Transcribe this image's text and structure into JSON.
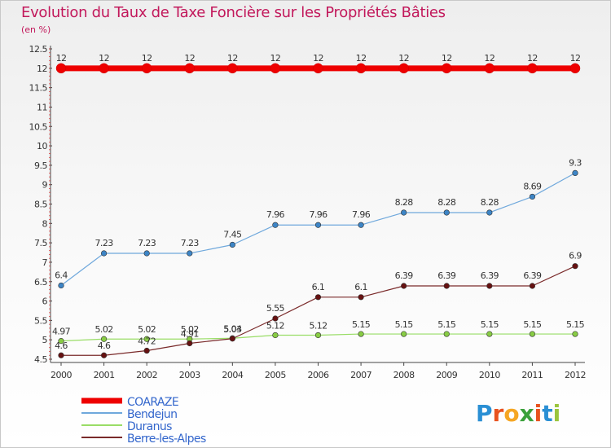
{
  "title": "Evolution du Taux de Taxe Foncière sur les Propriétés Bâties",
  "unit_label": "(en %)",
  "logo": {
    "letters": [
      "P",
      "r",
      "o",
      "x",
      "i",
      "t",
      "i"
    ],
    "colors": [
      "#2a8fd4",
      "#e8521f",
      "#f5a623",
      "#3aa03a",
      "#e8521f",
      "#2a8fd4",
      "#9bc53d"
    ]
  },
  "chart_data": {
    "type": "line",
    "title": "Evolution du Taux de Taxe Foncière sur les Propriétés Bâties",
    "ylabel": "(en %)",
    "xlabel": "",
    "x": [
      "2000",
      "2001",
      "2002",
      "2003",
      "2004",
      "2005",
      "2006",
      "2007",
      "2008",
      "2009",
      "2010",
      "2011",
      "2012"
    ],
    "ylim": [
      4.5,
      12.5
    ],
    "yticks": [
      "4.5",
      "5",
      "5.5",
      "6",
      "6.5",
      "7",
      "7.5",
      "8",
      "8.5",
      "9",
      "9.5",
      "10",
      "10.5",
      "11",
      "11.5",
      "12",
      "12.5"
    ],
    "grid": false,
    "legend_position": "bottom-left",
    "series": [
      {
        "name": "COARAZE",
        "color": "#ee0000",
        "marker": "#ee0000",
        "width": 7,
        "values": [
          12,
          12,
          12,
          12,
          12,
          12,
          12,
          12,
          12,
          12,
          12,
          12,
          12
        ],
        "labels": [
          "12",
          "12",
          "12",
          "12",
          "12",
          "12",
          "12",
          "12",
          "12",
          "12",
          "12",
          "12",
          "12"
        ]
      },
      {
        "name": "Bendejun",
        "color": "#6fa8dc",
        "marker": "#3d85c6",
        "width": 1.2,
        "values": [
          6.4,
          7.23,
          7.23,
          7.23,
          7.45,
          7.96,
          7.96,
          7.96,
          8.28,
          8.28,
          8.28,
          8.69,
          9.3
        ],
        "labels": [
          "6.4",
          "7.23",
          "7.23",
          "7.23",
          "7.45",
          "7.96",
          "7.96",
          "7.96",
          "8.28",
          "8.28",
          "8.28",
          "8.69",
          "9.3"
        ]
      },
      {
        "name": "Duranus",
        "color": "#99dd66",
        "marker": "#88cc44",
        "width": 1.2,
        "values": [
          4.97,
          5.02,
          5.02,
          5.02,
          5.04,
          5.12,
          5.12,
          5.15,
          5.15,
          5.15,
          5.15,
          5.15,
          5.15
        ],
        "labels": [
          "4.97",
          "5.02",
          "5.02",
          "5.02",
          "5.04",
          "5.12",
          "5.12",
          "5.15",
          "5.15",
          "5.15",
          "5.15",
          "5.15",
          "5.15"
        ]
      },
      {
        "name": "Berre-les-Alpes",
        "color": "#7a2a2a",
        "marker": "#661111",
        "width": 1.2,
        "values": [
          4.6,
          4.6,
          4.72,
          4.91,
          5.03,
          5.55,
          6.1,
          6.1,
          6.39,
          6.39,
          6.39,
          6.39,
          6.9
        ],
        "labels": [
          "4.6",
          "4.6",
          "4.72",
          "4.91",
          "5.03",
          "5.55",
          "6.1",
          "6.1",
          "6.39",
          "6.39",
          "6.39",
          "6.39",
          "6.9"
        ]
      }
    ]
  }
}
